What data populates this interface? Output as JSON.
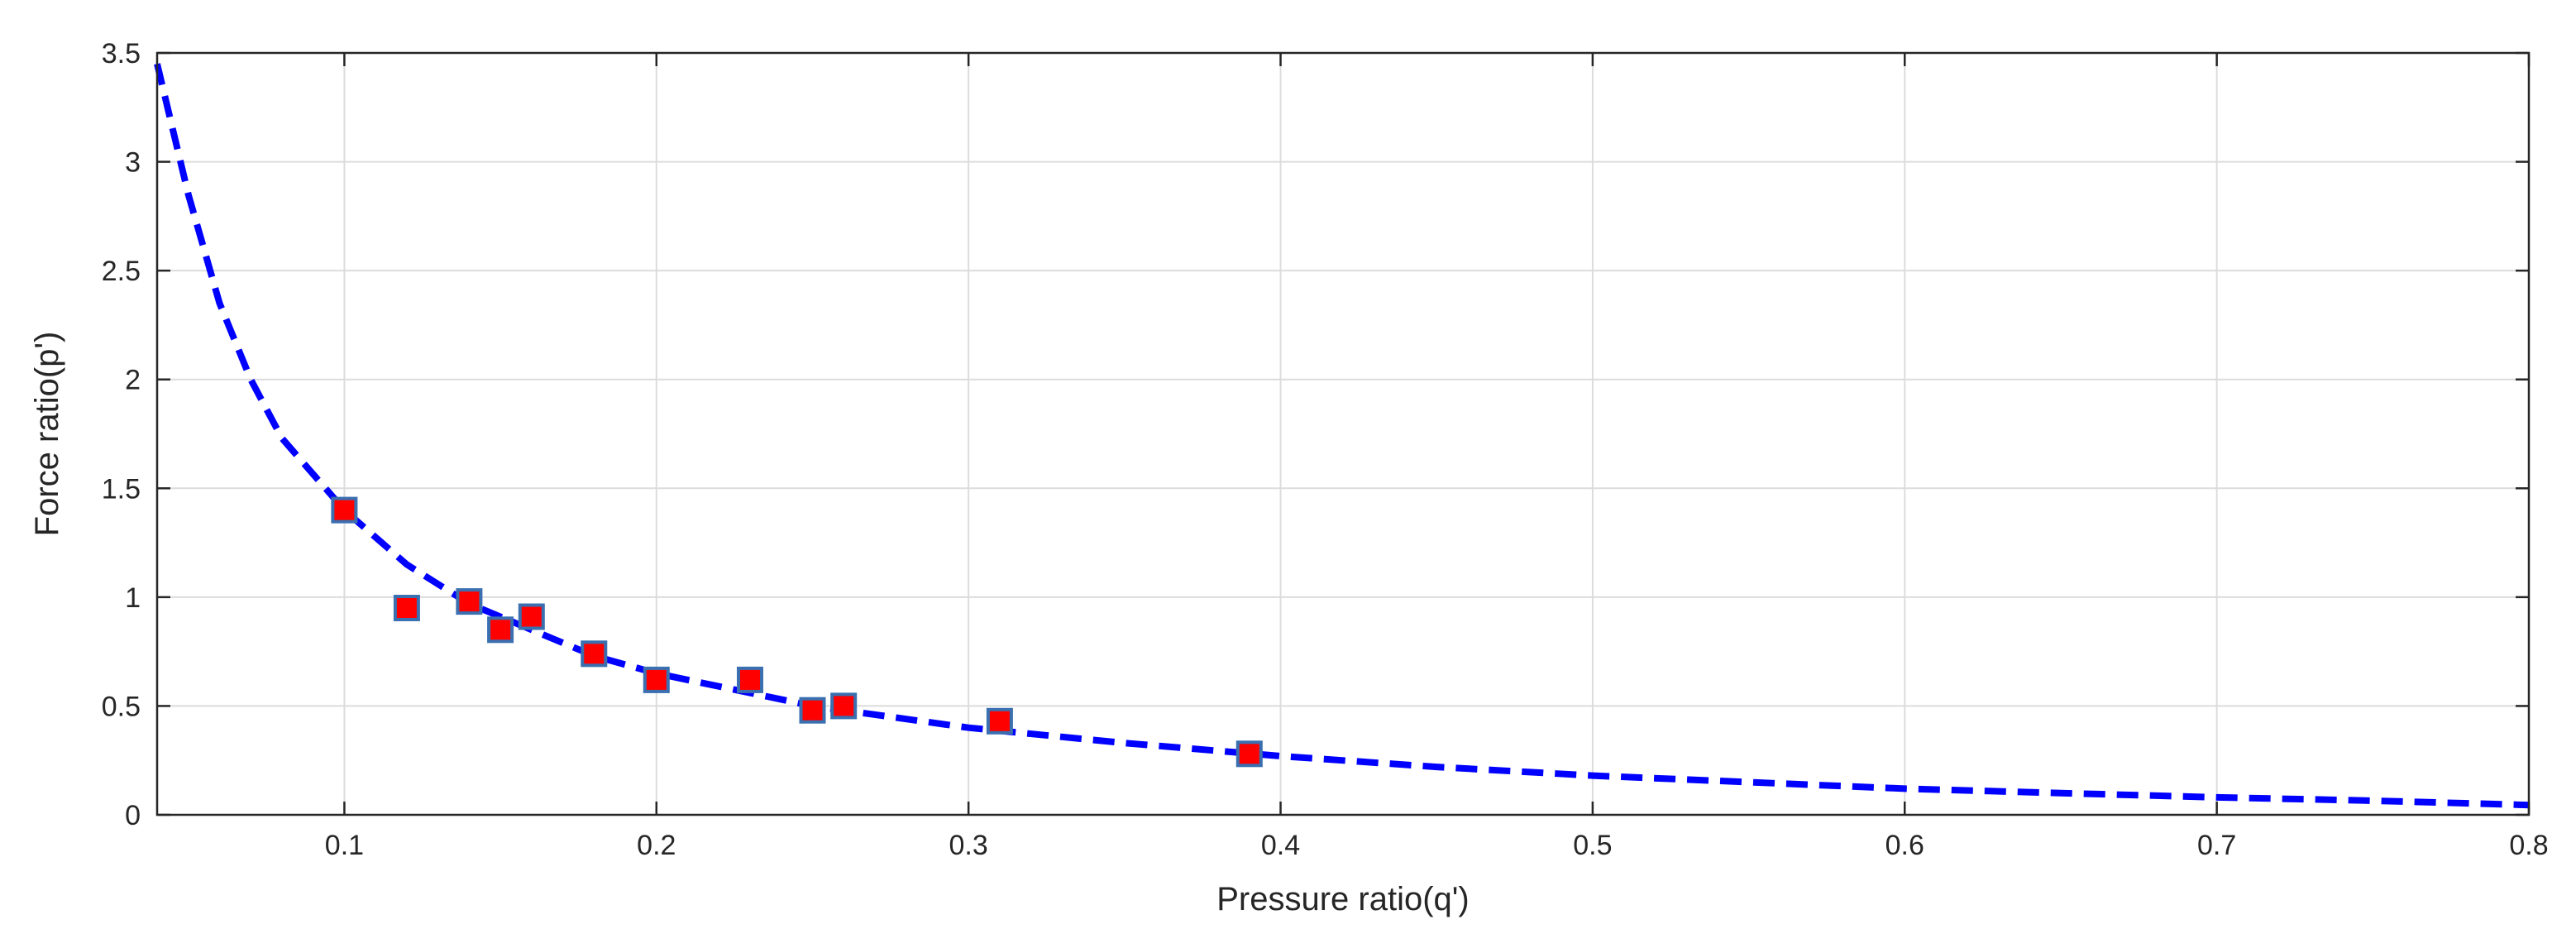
{
  "chart_data": {
    "type": "scatter",
    "title": "",
    "xlabel": "Pressure ratio(q')",
    "ylabel": "Force ratio(p')",
    "xlim": [
      0.04,
      0.8
    ],
    "ylim": [
      0,
      3.5
    ],
    "xticks": [
      0.1,
      0.2,
      0.3,
      0.4,
      0.5,
      0.6,
      0.7,
      0.8
    ],
    "xtick_labels": [
      "0.1",
      "0.2",
      "0.3",
      "0.4",
      "0.5",
      "0.6",
      "0.7",
      "0.8"
    ],
    "yticks": [
      0,
      0.5,
      1,
      1.5,
      2,
      2.5,
      3,
      3.5
    ],
    "ytick_labels": [
      "0",
      "0.5",
      "1",
      "1.5",
      "2",
      "2.5",
      "3",
      "3.5"
    ],
    "grid": true,
    "series": [
      {
        "kind": "points",
        "marker": "square",
        "color": "#ff0000",
        "edge_color": "#3a6fb0",
        "x": [
          0.1,
          0.12,
          0.14,
          0.15,
          0.16,
          0.18,
          0.2,
          0.23,
          0.25,
          0.26,
          0.31,
          0.39
        ],
        "y": [
          1.4,
          0.95,
          0.98,
          0.85,
          0.91,
          0.74,
          0.62,
          0.62,
          0.48,
          0.5,
          0.43,
          0.28
        ]
      },
      {
        "kind": "fitted-curve",
        "style": "dashed",
        "color": "#0000ff",
        "x": [
          0.04,
          0.05,
          0.06,
          0.07,
          0.08,
          0.1,
          0.12,
          0.14,
          0.16,
          0.18,
          0.2,
          0.25,
          0.3,
          0.35,
          0.4,
          0.45,
          0.5,
          0.55,
          0.6,
          0.65,
          0.7,
          0.75,
          0.8
        ],
        "y": [
          3.45,
          2.85,
          2.35,
          2.0,
          1.73,
          1.4,
          1.15,
          0.97,
          0.85,
          0.73,
          0.65,
          0.5,
          0.4,
          0.33,
          0.27,
          0.22,
          0.18,
          0.15,
          0.12,
          0.1,
          0.08,
          0.065,
          0.045
        ]
      }
    ]
  }
}
